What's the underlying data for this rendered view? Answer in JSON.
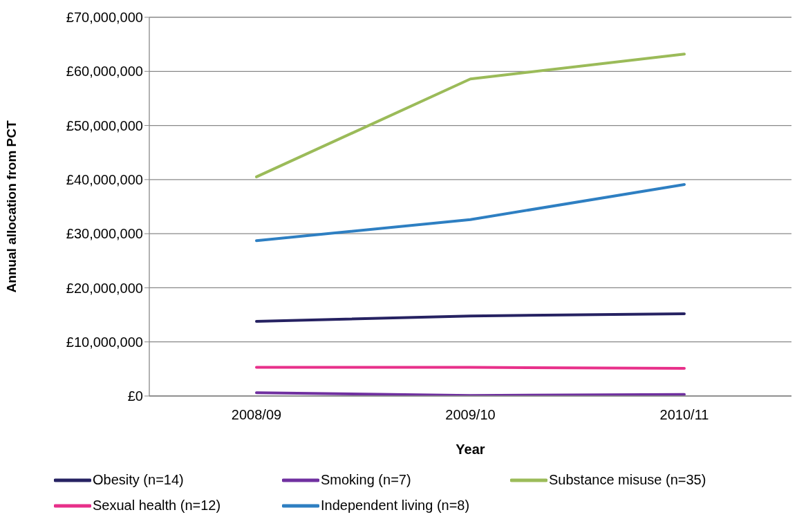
{
  "chart_data": {
    "type": "line",
    "xlabel": "Year",
    "ylabel": "Annual allocation from PCT",
    "categories": [
      "2008/09",
      "2009/10",
      "2010/11"
    ],
    "series": [
      {
        "name": "Obesity (n=14)",
        "color": "#262262",
        "values": [
          13800000,
          14800000,
          15200000
        ]
      },
      {
        "name": "Smoking (n=7)",
        "color": "#7030a0",
        "values": [
          600000,
          100000,
          300000
        ]
      },
      {
        "name": "Substance misuse (n=35)",
        "color": "#9bbb59",
        "values": [
          40500000,
          58600000,
          63200000
        ]
      },
      {
        "name": "Sexual health (n=12)",
        "color": "#e8308a",
        "values": [
          5300000,
          5300000,
          5100000
        ]
      },
      {
        "name": "Independent living (n=8)",
        "color": "#2e7fc2",
        "values": [
          28700000,
          32600000,
          39100000
        ]
      }
    ],
    "ylim": [
      0,
      70000000
    ],
    "yticks": [
      {
        "value": 0,
        "label": "£0"
      },
      {
        "value": 10000000,
        "label": "£10,000,000"
      },
      {
        "value": 20000000,
        "label": "£20,000,000"
      },
      {
        "value": 30000000,
        "label": "£30,000,000"
      },
      {
        "value": 40000000,
        "label": "£40,000,000"
      },
      {
        "value": 50000000,
        "label": "£50,000,000"
      },
      {
        "value": 60000000,
        "label": "£60,000,000"
      },
      {
        "value": 70000000,
        "label": "£70,000,000"
      }
    ],
    "grid": "y",
    "legend": "bottom",
    "marker": "none",
    "line_style": "solid"
  }
}
